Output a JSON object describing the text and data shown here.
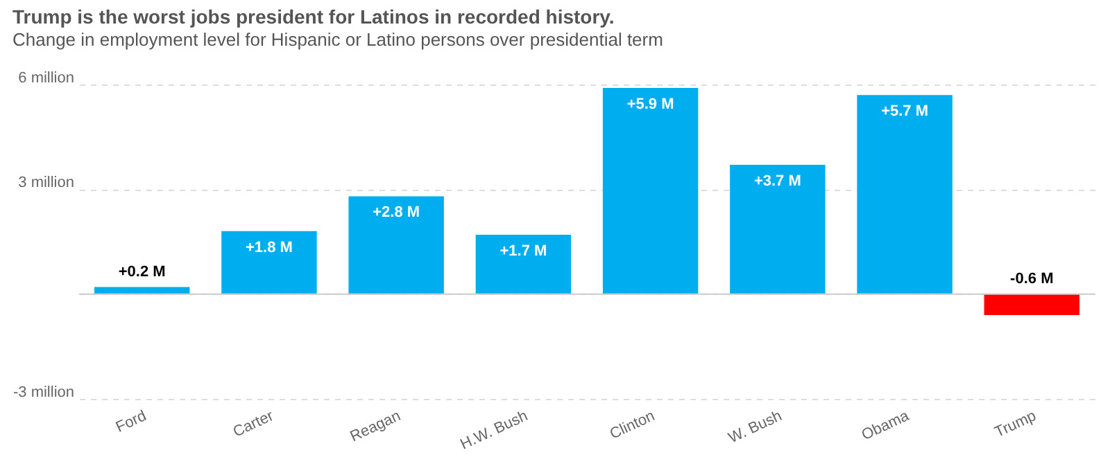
{
  "chart_data": {
    "type": "bar",
    "title": "Trump is the worst jobs president for Latinos in recorded history.",
    "subtitle": "Change in employment level for Hispanic or Latino persons over presidential term",
    "categories": [
      "Ford",
      "Carter",
      "Reagan",
      "H.W. Bush",
      "Clinton",
      "W. Bush",
      "Obama",
      "Trump"
    ],
    "values": [
      0.2,
      1.8,
      2.8,
      1.7,
      5.9,
      3.7,
      5.7,
      -0.6
    ],
    "colors": [
      "#00aeef",
      "#00aeef",
      "#00aeef",
      "#00aeef",
      "#00aeef",
      "#00aeef",
      "#00aeef",
      "#ff0000"
    ],
    "value_labels": [
      "+0.2 M",
      "+1.8 M",
      "+2.8 M",
      "+1.7 M",
      "+5.9 M",
      "+3.7 M",
      "+5.7 M",
      "-0.6 M"
    ],
    "ylim": [
      -3,
      6
    ],
    "yticks": [
      {
        "value": -3,
        "label": "-3 million"
      },
      {
        "value": 0,
        "label": null
      },
      {
        "value": 3,
        "label": "3 million"
      },
      {
        "value": 6,
        "label": "6 million"
      }
    ],
    "ref_lines": [
      {
        "axis": "y",
        "value": 0,
        "color": "#cccccc"
      }
    ],
    "grid": "y"
  }
}
